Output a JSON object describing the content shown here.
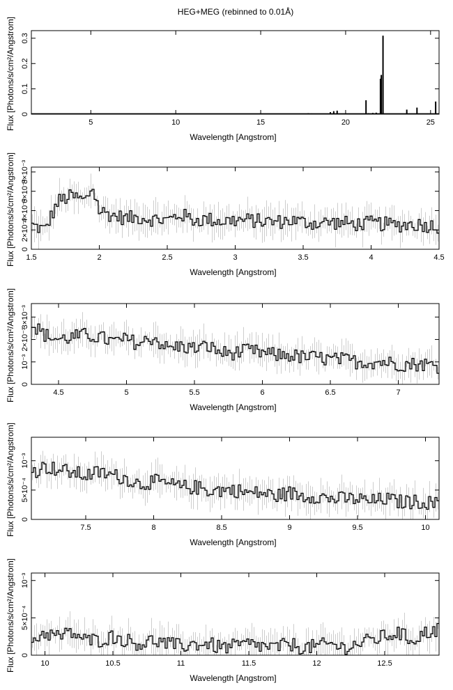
{
  "title": "HEG+MEG (rebinned to 0.01Å)",
  "chart_data": [
    {
      "type": "line",
      "title": "HEG+MEG (rebinned to 0.01Å)",
      "xlabel": "Wavelength [Angstrom]",
      "ylabel": "Flux [Photons/s/cm²/Angstrom]",
      "xlim": [
        1.5,
        25.5
      ],
      "ylim": [
        0,
        0.33
      ],
      "xticks": [
        5,
        10,
        15,
        20,
        25
      ],
      "xtick_labels": [
        "5",
        "10",
        "15",
        "20",
        "25"
      ],
      "yticks": [
        0,
        0.1,
        0.2,
        0.3
      ],
      "ytick_labels": [
        "0",
        "0.1",
        "0.2",
        "0.3"
      ],
      "baseline": 0.002,
      "series": [
        {
          "x": [
            17.8,
            18.0,
            19.1,
            19.3,
            19.5,
            21.2,
            21.35,
            21.6,
            21.8,
            22.05,
            22.1,
            22.2,
            23.6,
            24.2,
            24.8,
            25.3
          ],
          "y": [
            0.004,
            0.003,
            0.008,
            0.012,
            0.014,
            0.055,
            0.004,
            0.005,
            0.006,
            0.14,
            0.155,
            0.31,
            0.018,
            0.026,
            0.003,
            0.05
          ]
        }
      ]
    },
    {
      "type": "line",
      "xlabel": "Wavelength [Angstrom]",
      "ylabel": "Flux [Photons/s/cm²/Angstrom]",
      "xlim": [
        1.5,
        4.5
      ],
      "ylim": [
        0,
        0.0085
      ],
      "xticks": [
        1.5,
        2,
        2.5,
        3,
        3.5,
        4,
        4.5
      ],
      "xtick_labels": [
        "1.5",
        "2",
        "2.5",
        "3",
        "3.5",
        "4",
        "4.5"
      ],
      "yticks": [
        0,
        0.002,
        0.004,
        0.006,
        0.008
      ],
      "ytick_labels": [
        "0",
        "2×10⁻³",
        "4×10⁻³",
        "6×10⁻³",
        "8×10⁻³"
      ],
      "series": [
        {
          "x": [
            1.5,
            1.6,
            1.7,
            1.8,
            1.9,
            1.95,
            2.0,
            2.1,
            2.2,
            2.3,
            2.4,
            2.5,
            2.6,
            2.7,
            2.8,
            2.9,
            3.0,
            3.1,
            3.2,
            3.3,
            3.4,
            3.5,
            3.6,
            3.7,
            3.8,
            3.9,
            4.0,
            4.1,
            4.2,
            4.3,
            4.4,
            4.5
          ],
          "y": [
            0.0025,
            0.002,
            0.005,
            0.0055,
            0.005,
            0.0065,
            0.004,
            0.0035,
            0.0032,
            0.0033,
            0.0031,
            0.003,
            0.0036,
            0.003,
            0.0031,
            0.0029,
            0.003,
            0.003,
            0.0029,
            0.0028,
            0.003,
            0.0028,
            0.0027,
            0.0028,
            0.0027,
            0.0026,
            0.0027,
            0.0026,
            0.0025,
            0.0026,
            0.0025,
            0.0024
          ]
        }
      ]
    },
    {
      "type": "line",
      "xlabel": "Wavelength [Angstrom]",
      "ylabel": "Flux [Photons/s/cm²/Angstrom]",
      "xlim": [
        4.3,
        7.3
      ],
      "ylim": [
        0,
        0.0036
      ],
      "xticks": [
        4.5,
        5,
        5.5,
        6,
        6.5,
        7
      ],
      "xtick_labels": [
        "4.5",
        "5",
        "5.5",
        "6",
        "6.5",
        "7"
      ],
      "yticks": [
        0,
        0.001,
        0.002,
        0.003
      ],
      "ytick_labels": [
        "0",
        "10⁻³",
        "2×10⁻³",
        "3×10⁻³"
      ],
      "series": [
        {
          "x": [
            4.3,
            4.4,
            4.5,
            4.6,
            4.7,
            4.8,
            4.9,
            5.0,
            5.1,
            5.2,
            5.3,
            5.4,
            5.5,
            5.6,
            5.7,
            5.8,
            5.9,
            6.0,
            6.1,
            6.2,
            6.3,
            6.4,
            6.5,
            6.6,
            6.7,
            6.8,
            6.9,
            7.0,
            7.1,
            7.2,
            7.3
          ],
          "y": [
            0.0027,
            0.0022,
            0.002,
            0.0021,
            0.0022,
            0.0021,
            0.0019,
            0.002,
            0.0018,
            0.0021,
            0.0016,
            0.0017,
            0.0016,
            0.0017,
            0.0014,
            0.0014,
            0.0015,
            0.0014,
            0.0013,
            0.0013,
            0.0012,
            0.0012,
            0.0011,
            0.0011,
            0.001,
            0.001,
            0.001,
            0.0009,
            0.0009,
            0.0009,
            0.0008
          ]
        }
      ]
    },
    {
      "type": "line",
      "xlabel": "Wavelength [Angstrom]",
      "ylabel": "Flux [Photons/s/cm²/Angstrom]",
      "xlim": [
        7.1,
        10.1
      ],
      "ylim": [
        0,
        0.0014
      ],
      "xticks": [
        7.5,
        8,
        8.5,
        9,
        9.5,
        10
      ],
      "xtick_labels": [
        "7.5",
        "8",
        "8.5",
        "9",
        "9.5",
        "10"
      ],
      "yticks": [
        0,
        0.0005,
        0.001
      ],
      "ytick_labels": [
        "0",
        "5×10⁻⁴",
        "10⁻³"
      ],
      "series": [
        {
          "x": [
            7.1,
            7.2,
            7.3,
            7.4,
            7.5,
            7.6,
            7.7,
            7.8,
            7.9,
            8.0,
            8.1,
            8.2,
            8.3,
            8.4,
            8.5,
            8.6,
            8.7,
            8.8,
            8.9,
            9.0,
            9.1,
            9.2,
            9.3,
            9.4,
            9.5,
            9.6,
            9.7,
            9.8,
            9.9,
            10.0,
            10.1
          ],
          "y": [
            0.0008,
            0.0009,
            0.00085,
            0.0008,
            0.00075,
            0.0008,
            0.00075,
            0.0007,
            0.0006,
            0.00065,
            0.0006,
            0.00055,
            0.00055,
            0.0005,
            0.0005,
            0.0005,
            0.00045,
            0.00045,
            0.0004,
            0.00045,
            0.0004,
            0.0004,
            0.00035,
            0.00035,
            0.00035,
            0.0003,
            0.00035,
            0.0003,
            0.0003,
            0.0003,
            0.00025
          ]
        }
      ]
    },
    {
      "type": "line",
      "xlabel": "Wavelength [Angstrom]",
      "ylabel": "Flux [Photons/s/cm²/Angstrom]",
      "xlim": [
        9.9,
        12.9
      ],
      "ylim": [
        0,
        0.0011
      ],
      "xticks": [
        10,
        10.5,
        11,
        11.5,
        12,
        12.5
      ],
      "xtick_labels": [
        "10",
        "10.5",
        "11",
        "11.5",
        "12",
        "12.5"
      ],
      "yticks": [
        0,
        0.0005,
        0.001
      ],
      "ytick_labels": [
        "0",
        "5×10⁻⁴",
        "10⁻³"
      ],
      "series": [
        {
          "x": [
            9.9,
            10.0,
            10.1,
            10.2,
            10.3,
            10.4,
            10.5,
            10.6,
            10.7,
            10.8,
            10.9,
            11.0,
            11.1,
            11.2,
            11.3,
            11.4,
            11.5,
            11.6,
            11.7,
            11.8,
            11.9,
            12.0,
            12.1,
            12.2,
            12.3,
            12.4,
            12.5,
            12.6,
            12.7,
            12.8,
            12.9
          ],
          "y": [
            0.0002,
            0.0003,
            0.00025,
            0.0003,
            0.0002,
            0.0002,
            0.00025,
            0.0002,
            0.00015,
            0.0002,
            0.00015,
            0.00012,
            0.00015,
            0.00015,
            0.0001,
            0.00012,
            0.00015,
            0.00012,
            0.0001,
            0.00015,
            0.0001,
            0.00012,
            0.00015,
            0.0001,
            0.00015,
            0.0002,
            0.00025,
            0.0003,
            0.0002,
            0.0003,
            0.00035
          ]
        }
      ]
    }
  ]
}
